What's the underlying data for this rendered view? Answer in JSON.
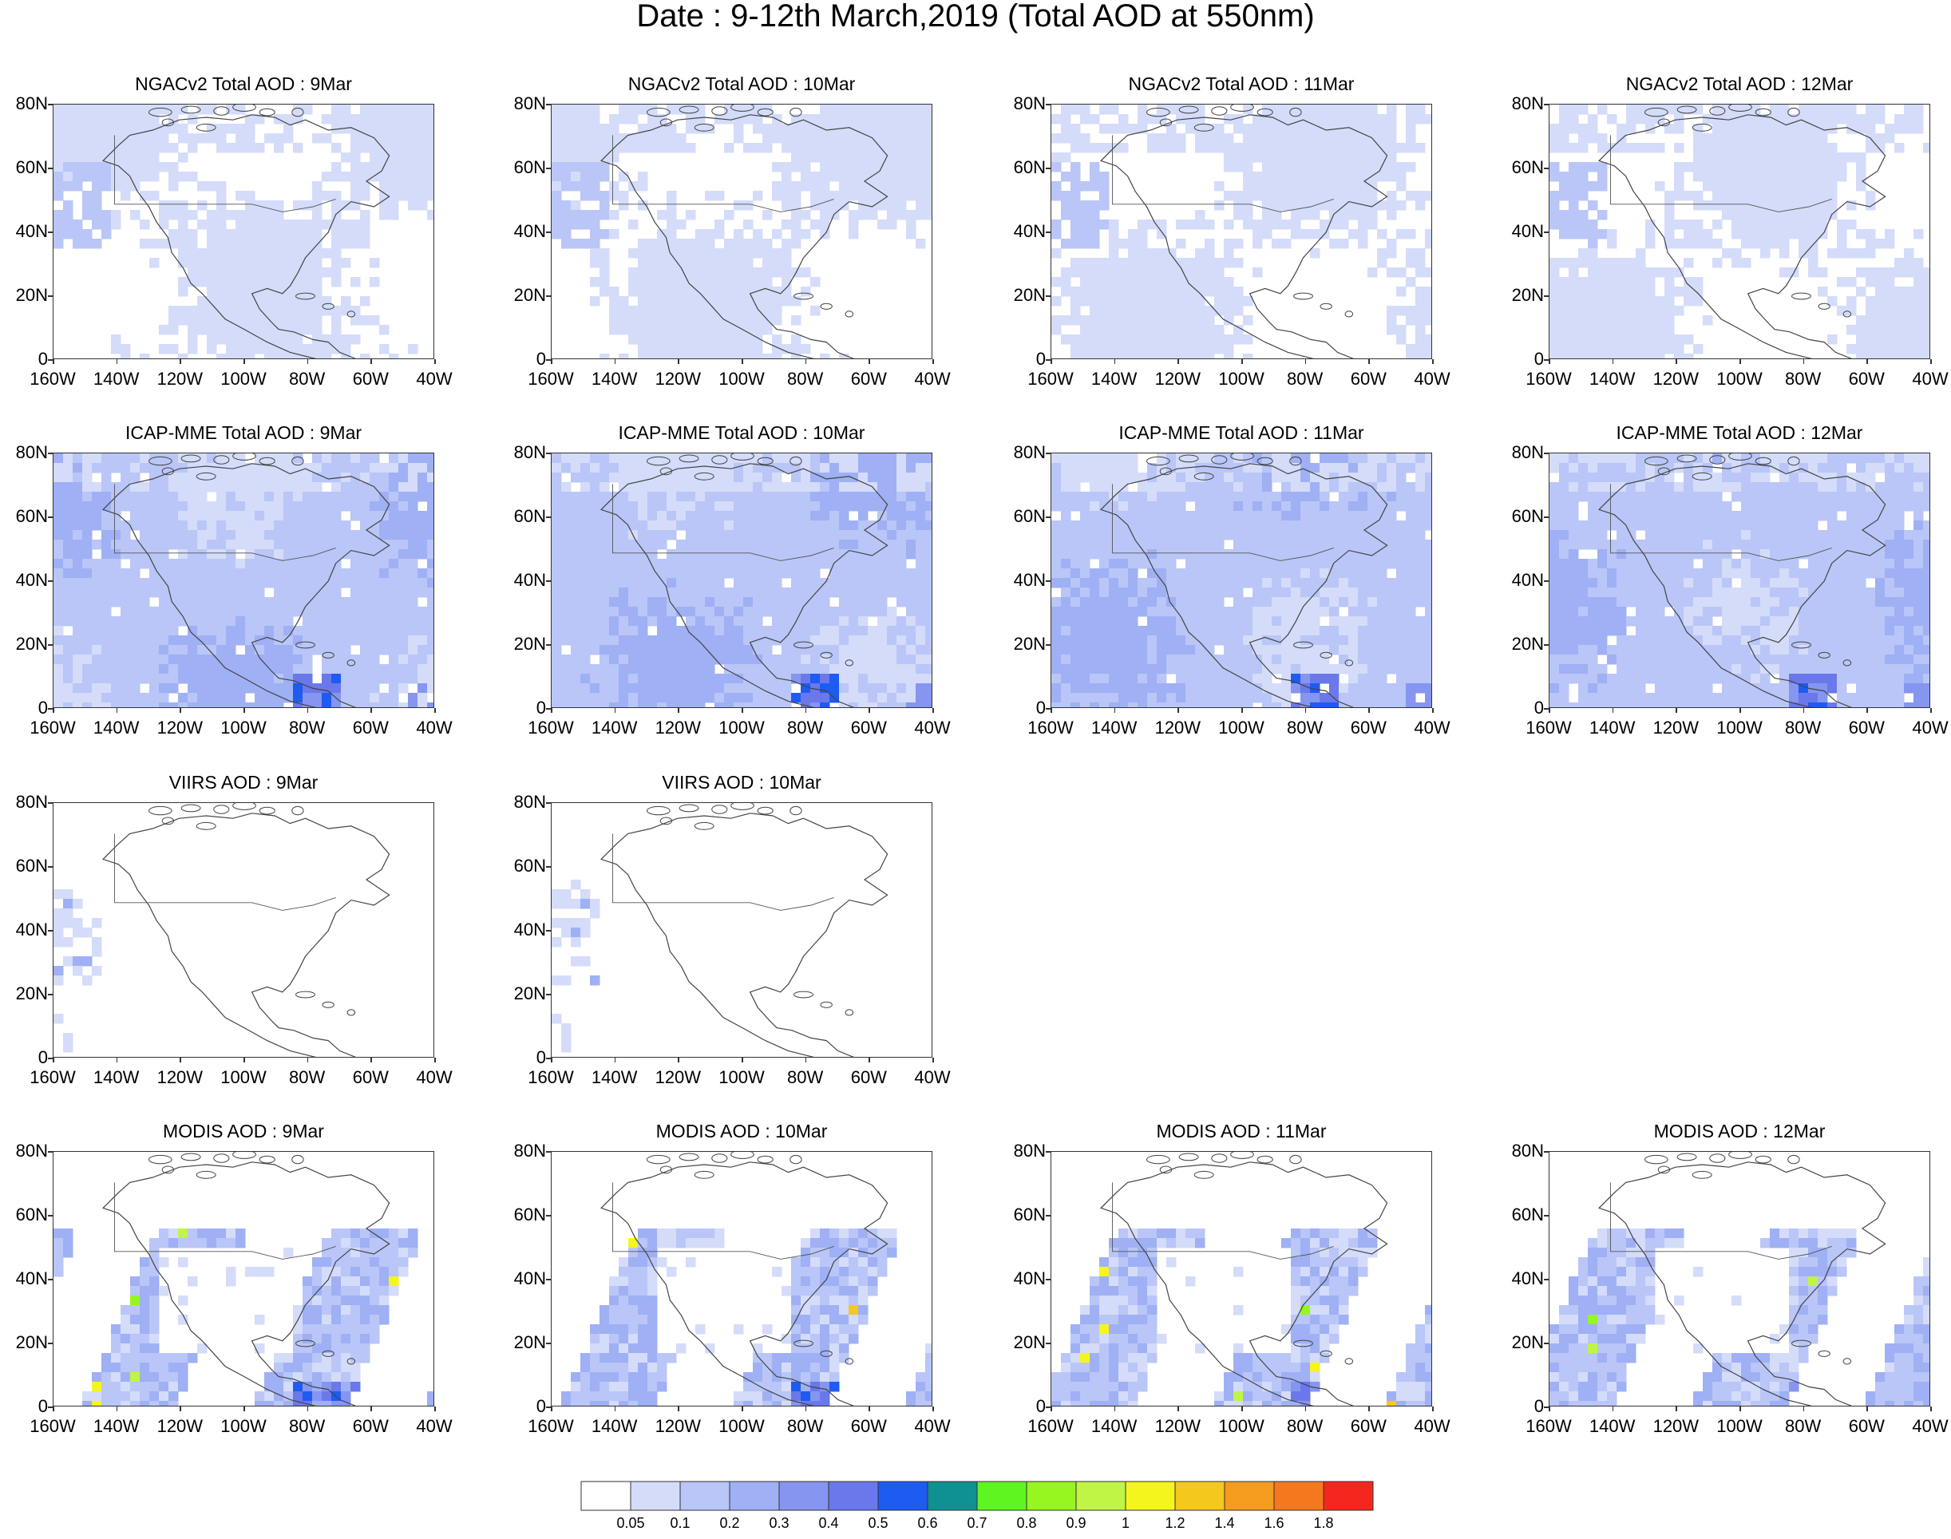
{
  "title": "Date : 9-12th March,2019 (Total AOD at 550nm)",
  "lon_labels": [
    "160W",
    "140W",
    "120W",
    "100W",
    "80W",
    "60W",
    "40W"
  ],
  "lat_labels": [
    "80N",
    "60N",
    "40N",
    "20N",
    "0"
  ],
  "rows": [
    {
      "model": "NGACv2",
      "panels": [
        {
          "title": "NGACv2 Total AOD : 9Mar",
          "level": "low",
          "coverage": "full"
        },
        {
          "title": "NGACv2 Total AOD : 10Mar",
          "level": "low",
          "coverage": "full"
        },
        {
          "title": "NGACv2 Total AOD : 11Mar",
          "level": "low",
          "coverage": "full"
        },
        {
          "title": "NGACv2 Total AOD : 12Mar",
          "level": "low",
          "coverage": "full"
        }
      ]
    },
    {
      "model": "ICAP-MME",
      "panels": [
        {
          "title": "ICAP-MME Total AOD : 9Mar",
          "level": "medium",
          "coverage": "full"
        },
        {
          "title": "ICAP-MME Total AOD : 10Mar",
          "level": "medium",
          "coverage": "full"
        },
        {
          "title": "ICAP-MME Total AOD : 11Mar",
          "level": "medium",
          "coverage": "full"
        },
        {
          "title": "ICAP-MME Total AOD : 12Mar",
          "level": "medium",
          "coverage": "full"
        }
      ]
    },
    {
      "model": "VIIRS",
      "panels": [
        {
          "title": "VIIRS AOD : 9Mar",
          "level": "sparse",
          "coverage": "west-edge"
        },
        {
          "title": "VIIRS AOD : 10Mar",
          "level": "sparse",
          "coverage": "west-edge"
        }
      ]
    },
    {
      "model": "MODIS",
      "panels": [
        {
          "title": "MODIS AOD : 9Mar",
          "level": "swath",
          "coverage": "swaths"
        },
        {
          "title": "MODIS AOD : 10Mar",
          "level": "swath",
          "coverage": "swaths"
        },
        {
          "title": "MODIS AOD : 11Mar",
          "level": "swath",
          "coverage": "swaths"
        },
        {
          "title": "MODIS AOD : 12Mar",
          "level": "swath",
          "coverage": "swaths"
        }
      ]
    }
  ],
  "chart_data": {
    "type": "heatmap",
    "title": "Date : 9-12th March,2019 (Total AOD at 550nm)",
    "x_range": [
      "160W",
      "40W"
    ],
    "y_range": [
      "0",
      "80N"
    ],
    "colorbar": {
      "labels": [
        "0.05",
        "0.1",
        "0.2",
        "0.3",
        "0.4",
        "0.5",
        "0.6",
        "0.7",
        "0.8",
        "0.9",
        "1",
        "1.2",
        "1.4",
        "1.6",
        "1.8"
      ],
      "colors": [
        "#ffffff",
        "#d4dcfa",
        "#b9c6f7",
        "#9fb0f4",
        "#8595f0",
        "#6a78ec",
        "#1e5bf0",
        "#0f9191",
        "#5ef520",
        "#97f520",
        "#c0f545",
        "#f5f51e",
        "#f5c81e",
        "#f59b1e",
        "#f5781e",
        "#f5261e"
      ]
    }
  }
}
